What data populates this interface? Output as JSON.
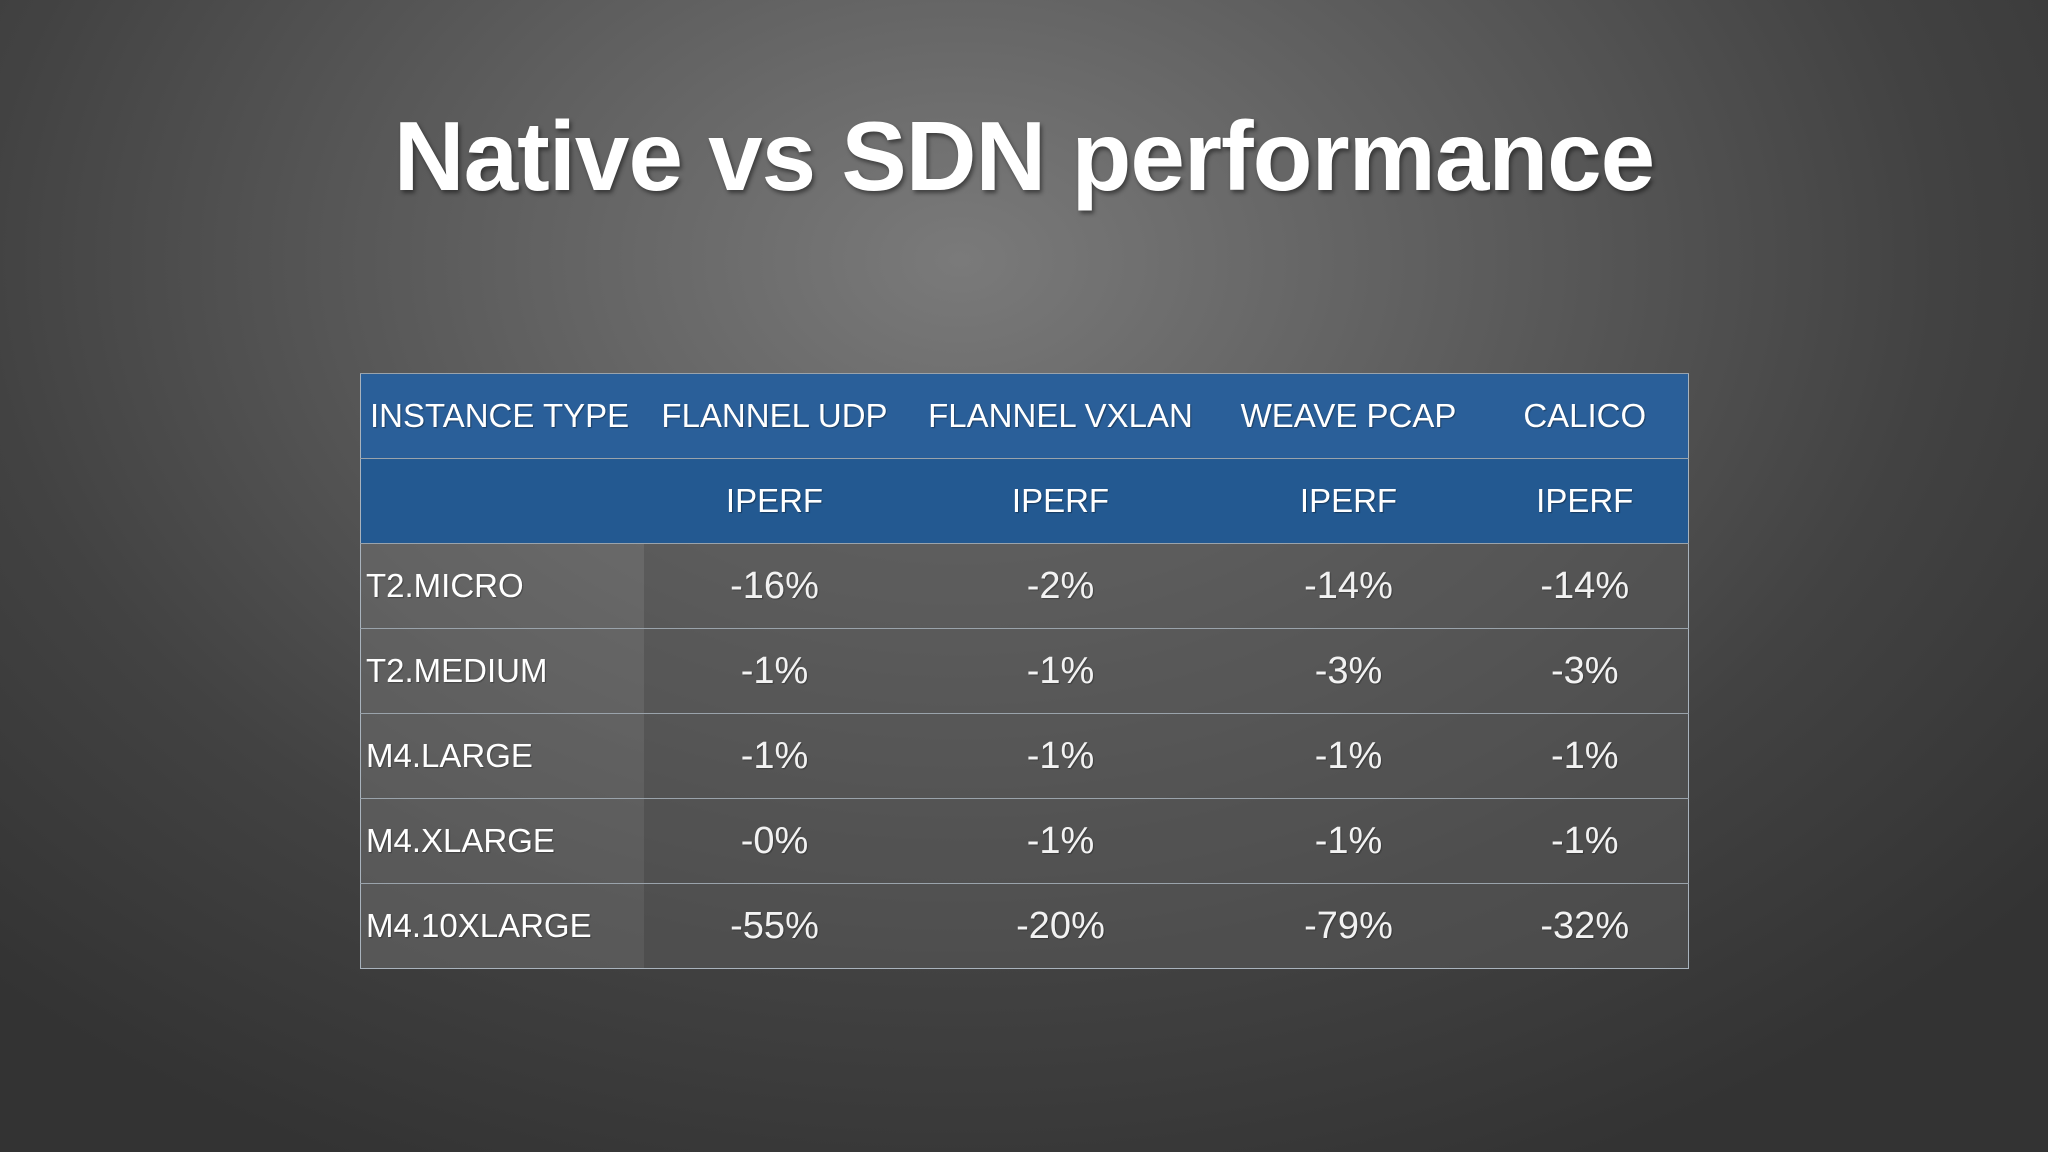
{
  "slide": {
    "title": "Native vs SDN performance"
  },
  "table": {
    "headers": [
      "INSTANCE TYPE",
      "FLANNEL UDP",
      "FLANNEL VXLAN",
      "WEAVE PCAP",
      "CALICO"
    ],
    "subheaders": [
      "",
      "IPERF",
      "IPERF",
      "IPERF",
      "IPERF"
    ],
    "rows": [
      [
        "T2.MICRO",
        "-16%",
        "-2%",
        "-14%",
        "-14%"
      ],
      [
        "T2.MEDIUM",
        "-1%",
        "-1%",
        "-3%",
        "-3%"
      ],
      [
        "M4.LARGE",
        "-1%",
        "-1%",
        "-1%",
        "-1%"
      ],
      [
        "M4.XLARGE",
        "-0%",
        "-1%",
        "-1%",
        "-1%"
      ],
      [
        "M4.10XLARGE",
        "-55%",
        "-20%",
        "-79%",
        "-32%"
      ]
    ]
  },
  "colors": {
    "header_blue": "#2a5f99",
    "background_dark": "#333333"
  }
}
